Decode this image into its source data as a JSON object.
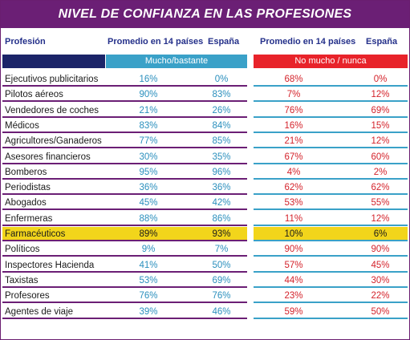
{
  "title": "NIVEL DE CONFIANZA EN LAS PROFESIONES",
  "headers": {
    "profession": "Profesión",
    "avg_left": "Promedio en 14 países",
    "spain_left": "España",
    "avg_right": "Promedio en 14 países",
    "spain_right": "España"
  },
  "bands": {
    "left": "Mucho/bastante",
    "right": "No mucho / nunca"
  },
  "colors": {
    "title_bg": "#6b1f75",
    "left_accent": "#3aa1c8",
    "right_accent": "#e8232a",
    "highlight": "#f2d51b"
  },
  "chart_data": {
    "type": "table",
    "title": "NIVEL DE CONFIANZA EN LAS PROFESIONES",
    "columns": [
      "Profesión",
      "Promedio en 14 países",
      "España",
      "Promedio en 14 países",
      "España"
    ],
    "column_groups": [
      {
        "name": "Mucho/bastante",
        "columns": [
          "Promedio en 14 países",
          "España"
        ]
      },
      {
        "name": "No mucho / nunca",
        "columns": [
          "Promedio en 14 países",
          "España"
        ]
      }
    ],
    "highlighted_row": "Farmacéuticos",
    "rows": [
      {
        "name": "Ejecutivos publicitarios",
        "trust_avg": "16%",
        "trust_es": "0%",
        "distrust_avg": "68%",
        "distrust_es": "0%"
      },
      {
        "name": "Pilotos aéreos",
        "trust_avg": "90%",
        "trust_es": "83%",
        "distrust_avg": "7%",
        "distrust_es": "12%"
      },
      {
        "name": "Vendedores de coches",
        "trust_avg": "21%",
        "trust_es": "26%",
        "distrust_avg": "76%",
        "distrust_es": "69%"
      },
      {
        "name": "Médicos",
        "trust_avg": "83%",
        "trust_es": "84%",
        "distrust_avg": "16%",
        "distrust_es": "15%"
      },
      {
        "name": "Agricultores/Ganaderos",
        "trust_avg": "77%",
        "trust_es": "85%",
        "distrust_avg": "21%",
        "distrust_es": "12%"
      },
      {
        "name": "Asesores financieros",
        "trust_avg": "30%",
        "trust_es": "35%",
        "distrust_avg": "67%",
        "distrust_es": "60%"
      },
      {
        "name": "Bomberos",
        "trust_avg": "95%",
        "trust_es": "96%",
        "distrust_avg": "4%",
        "distrust_es": "2%"
      },
      {
        "name": "Periodistas",
        "trust_avg": "36%",
        "trust_es": "36%",
        "distrust_avg": "62%",
        "distrust_es": "62%"
      },
      {
        "name": "Abogados",
        "trust_avg": "45%",
        "trust_es": "42%",
        "distrust_avg": "53%",
        "distrust_es": "55%"
      },
      {
        "name": "Enfermeras",
        "trust_avg": "88%",
        "trust_es": "86%",
        "distrust_avg": "11%",
        "distrust_es": "12%"
      },
      {
        "name": "Farmacéuticos",
        "trust_avg": "89%",
        "trust_es": "93%",
        "distrust_avg": "10%",
        "distrust_es": "6%"
      },
      {
        "name": "Políticos",
        "trust_avg": "9%",
        "trust_es": "7%",
        "distrust_avg": "90%",
        "distrust_es": "90%"
      },
      {
        "name": "Inspectores Hacienda",
        "trust_avg": "41%",
        "trust_es": "50%",
        "distrust_avg": "57%",
        "distrust_es": "45%"
      },
      {
        "name": "Taxistas",
        "trust_avg": "53%",
        "trust_es": "69%",
        "distrust_avg": "44%",
        "distrust_es": "30%"
      },
      {
        "name": "Profesores",
        "trust_avg": "76%",
        "trust_es": "76%",
        "distrust_avg": "23%",
        "distrust_es": "22%"
      },
      {
        "name": "Agentes de viaje",
        "trust_avg": "39%",
        "trust_es": "46%",
        "distrust_avg": "59%",
        "distrust_es": "50%"
      }
    ]
  }
}
